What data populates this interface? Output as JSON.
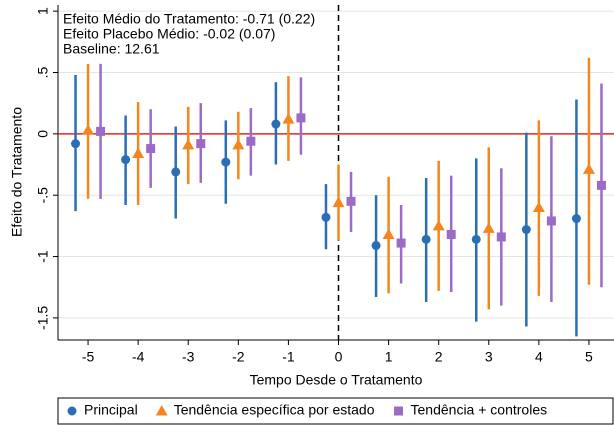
{
  "chart_data": {
    "type": "errorbar",
    "annotations": [
      "Efeito Médio do Tratamento: -0.71 (0.22)",
      "Efeito Placebo Médio: -0.02 (0.07)",
      "Baseline:  12.61"
    ],
    "xlabel": "Tempo Desde o Tratamento",
    "ylabel": "Efeito do Tratamento",
    "xlim": [
      -5.6,
      5.5
    ],
    "ylim": [
      -1.68,
      1.05
    ],
    "xticks": [
      -5,
      -4,
      -3,
      -2,
      -1,
      0,
      1,
      2,
      3,
      4,
      5
    ],
    "yticks": [
      {
        "value": 1,
        "label": "1"
      },
      {
        "value": 0.5,
        "label": ".5"
      },
      0,
      {
        "value": -0.5,
        "label": "-.5"
      },
      -1,
      -1.5
    ],
    "grid": true,
    "hline": {
      "value": 0,
      "color": "#e0291f"
    },
    "vline": {
      "value": 0,
      "color": "#000000"
    },
    "legend": "bottom",
    "series": [
      {
        "name": "Principal",
        "color": "#2a6fb3",
        "marker": "circle",
        "x": [
          -5.25,
          -4.25,
          -3.25,
          -2.25,
          -1.25,
          -0.25,
          0.75,
          1.75,
          2.75,
          3.75,
          4.75
        ],
        "values": [
          -0.08,
          -0.21,
          -0.31,
          -0.23,
          0.08,
          -0.68,
          -0.91,
          -0.86,
          -0.86,
          -0.78,
          -0.69
        ],
        "lower": [
          -0.63,
          -0.58,
          -0.69,
          -0.57,
          -0.25,
          -0.94,
          -1.33,
          -1.37,
          -1.53,
          -1.57,
          -1.65
        ],
        "upper": [
          0.48,
          0.15,
          0.06,
          0.11,
          0.42,
          -0.41,
          -0.5,
          -0.36,
          -0.2,
          0.01,
          0.28
        ]
      },
      {
        "name": "Tendência específica por estado",
        "color": "#f5861f",
        "marker": "triangle",
        "x": [
          -5,
          -4,
          -3,
          -2,
          -1,
          0,
          1,
          2,
          3,
          4,
          5
        ],
        "values": [
          0.03,
          -0.16,
          -0.09,
          -0.09,
          0.12,
          -0.56,
          -0.82,
          -0.75,
          -0.77,
          -0.6,
          -0.29
        ],
        "lower": [
          -0.53,
          -0.58,
          -0.41,
          -0.37,
          -0.22,
          -0.87,
          -1.3,
          -1.28,
          -1.43,
          -1.32,
          -1.23
        ],
        "upper": [
          0.57,
          0.26,
          0.22,
          0.18,
          0.47,
          -0.25,
          -0.35,
          -0.22,
          -0.11,
          0.11,
          0.62
        ]
      },
      {
        "name": "Tendência + controles",
        "color": "#9b6bc6",
        "marker": "square",
        "x": [
          -4.75,
          -3.75,
          -2.75,
          -1.75,
          -0.75,
          0.25,
          1.25,
          2.25,
          3.25,
          4.25,
          5.25
        ],
        "values": [
          0.02,
          -0.12,
          -0.08,
          -0.06,
          0.13,
          -0.55,
          -0.89,
          -0.82,
          -0.84,
          -0.71,
          -0.42
        ],
        "lower": [
          -0.53,
          -0.44,
          -0.4,
          -0.34,
          -0.17,
          -0.8,
          -1.22,
          -1.29,
          -1.4,
          -1.37,
          -1.25
        ],
        "upper": [
          0.57,
          0.2,
          0.25,
          0.21,
          0.46,
          -0.31,
          -0.58,
          -0.34,
          -0.28,
          -0.02,
          0.41
        ]
      }
    ]
  }
}
